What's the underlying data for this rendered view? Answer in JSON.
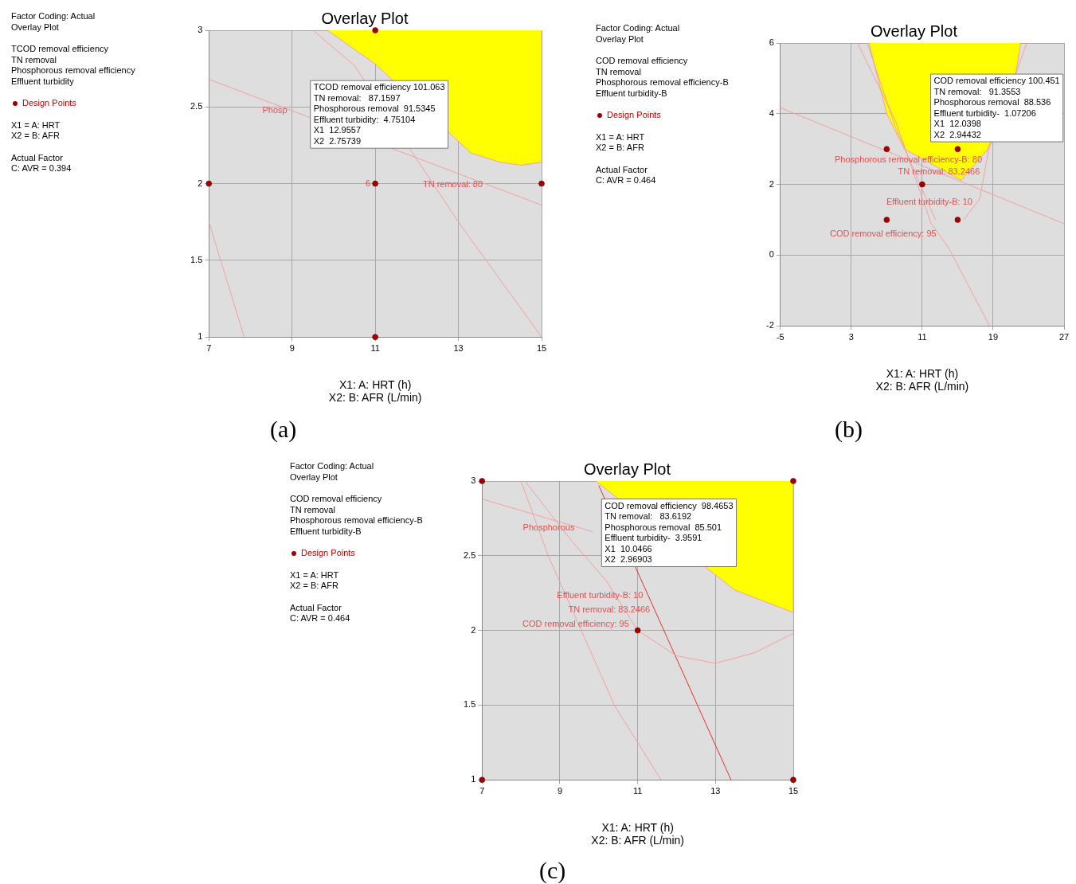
{
  "chart_data": [
    {
      "type": "scatter",
      "title": "Overlay Plot",
      "xlabel": "X1: A: HRT (h)\nX2: B: AFR (L/min)",
      "xlim": [
        7,
        15
      ],
      "xticks": [
        7,
        9,
        11,
        13,
        15
      ],
      "ylim": [
        1,
        3
      ],
      "yticks": [
        1,
        1.5,
        2,
        2.5,
        3
      ],
      "grid": true,
      "legend": "left",
      "annotations": [
        "Factor Coding: Actual\nOverlay Plot",
        "TCOD removal efficiency\nTN removal\nPhosphorous removal efficiency\nEffluent turbidity",
        "X1 = A: HRT\nX2 = B: AFR",
        "Actual Factor\nC: AVR = 0.394",
        "TCOD removal efficiency 101.063\nTN removal:   87.1597\nPhosphorous removal  91.5345\nEffluent turbidity:  4.75104\nX1  12.9557\nX2  2.75739",
        "(a)",
        {
          "text": "Phosp",
          "x": 9,
          "y": 2.475
        },
        {
          "text": "TN removal: 80",
          "x": 13.7,
          "y": 1.993
        },
        {
          "text": "6",
          "x": 11,
          "y": 2
        }
      ],
      "series": [
        {
          "type": "area",
          "color": "#ffff00",
          "x": [
            9.85,
            11,
            13.3,
            14,
            14.5,
            15,
            15
          ],
          "values": [
            3,
            2.78,
            2.2,
            2.14,
            2.12,
            2.14,
            3
          ]
        },
        {
          "type": "line",
          "color": "#f4a0a0",
          "x": [
            7,
            15
          ],
          "values": [
            2.68,
            1.86
          ]
        },
        {
          "type": "line",
          "color": "#f4a0a0",
          "x": [
            9.5,
            10.5,
            13,
            15
          ],
          "values": [
            3,
            2.77,
            1.75,
            1
          ]
        },
        {
          "type": "line",
          "color": "#f4a0a0",
          "x": [
            7,
            7.85
          ],
          "values": [
            1.75,
            1
          ]
        },
        {
          "type": "scatter",
          "name": "Design Points",
          "color": "#a00000",
          "marker": "circle",
          "x": [
            11,
            7,
            11,
            15,
            11
          ],
          "values": [
            3,
            2,
            2,
            2,
            1
          ]
        }
      ]
    },
    {
      "type": "scatter",
      "title": "Overlay Plot",
      "xlabel": "X1: A: HRT (h)\nX2: B: AFR (L/min)",
      "xlim": [
        -5,
        27
      ],
      "xticks": [
        -5,
        3,
        11,
        19,
        27
      ],
      "ylim": [
        -2,
        6
      ],
      "yticks": [
        -2,
        0,
        2,
        4,
        6
      ],
      "grid": true,
      "legend": "left",
      "annotations": [
        "Factor Coding: Actual\nOverlay Plot",
        "COD removal efficiency\nTN removal\nPhosphorous removal efficiency-B\nEffluent turbidity-B",
        "X1 = A: HRT\nX2 = B: AFR",
        "Actual Factor\nC: AVR = 0.464",
        "COD removal efficiency 100.451\nTN removal:   91.3553\nPhosphorous removal  88.536\nEffluent turbidity-  1.07206\nX1  12.0398\nX2  2.94432",
        "(b)",
        {
          "text": "Phosphorous removal efficiency-B: 80",
          "x": 18.29,
          "y": 2.7
        },
        {
          "text": "TN removal: 83.2466",
          "x": 18.04,
          "y": 2.35
        },
        {
          "text": "Effluent turbidity-B: 10",
          "x": 17.2,
          "y": 1.5
        },
        {
          "text": "COD removal efficiency: 95",
          "x": 13.14,
          "y": 0.6
        }
      ],
      "series": [
        {
          "type": "area",
          "color": "#ffff00",
          "x": [
            5,
            7,
            9,
            15.4,
            18.4,
            21.6,
            22.1
          ],
          "values": [
            6,
            4,
            3,
            2.12,
            3,
            5.2,
            6
          ]
        },
        {
          "type": "line",
          "color": "#f4a0a0",
          "x": [
            -5,
            27
          ],
          "values": [
            4.17,
            0.89
          ]
        },
        {
          "type": "line",
          "color": "#f4a0a0",
          "x": [
            3.7,
            8,
            12,
            14,
            18.6
          ],
          "values": [
            6,
            3.8,
            0.9,
            0.2,
            -2
          ]
        },
        {
          "type": "line",
          "color": "#f4a0a0",
          "x": [
            4.8,
            8,
            12.5
          ],
          "values": [
            6,
            3.6,
            1
          ]
        },
        {
          "type": "line",
          "color": "#f4a0a0",
          "x": [
            22.8,
            21.8,
            18.5,
            17.5,
            15.7
          ],
          "values": [
            6,
            5.3,
            3,
            1.6,
            1
          ]
        },
        {
          "type": "scatter",
          "name": "Design Points",
          "color": "#a00000",
          "marker": "circle",
          "x": [
            7,
            15,
            11,
            7,
            15
          ],
          "values": [
            3,
            3,
            2,
            1,
            1
          ]
        }
      ]
    },
    {
      "type": "scatter",
      "title": "Overlay Plot",
      "xlabel": "X1: A: HRT (h)\nX2: B: AFR (L/min)",
      "xlim": [
        7,
        15
      ],
      "xticks": [
        7,
        9,
        11,
        13,
        15
      ],
      "ylim": [
        1,
        3
      ],
      "yticks": [
        1,
        1.5,
        2,
        2.5,
        3
      ],
      "grid": true,
      "legend": "left",
      "annotations": [
        "Factor Coding: Actual\nOverlay Plot",
        "COD removal efficiency\nTN removal\nPhosphorous removal efficiency-B\nEffluent turbidity-B",
        "X1 = A: HRT\nX2 = B: AFR",
        "Actual Factor\nC: AVR = 0.464",
        "COD removal efficiency  98.4653\nTN removal:   83.6192\nPhosphorous removal  85.501\nEffluent turbidity-  3.9591\nX1  10.0466\nX2  2.96903",
        "(c)",
        {
          "text": "Phosphorous",
          "x": 9.5,
          "y": 2.687
        },
        {
          "text": "Effluent turbidity-B: 10",
          "x": 11.26,
          "y": 2.23
        },
        {
          "text": "TN removal: 83.2466",
          "x": 11.44,
          "y": 2.135
        },
        {
          "text": "COD removal efficiency: 95",
          "x": 10.9,
          "y": 2.04
        }
      ],
      "series": [
        {
          "type": "area",
          "color": "#ffff00",
          "x": [
            9.92,
            13.5,
            15,
            15
          ],
          "values": [
            3,
            2.27,
            2.12,
            3
          ]
        },
        {
          "type": "line",
          "color": "#f4a0a0",
          "x": [
            7,
            9.85
          ],
          "values": [
            2.88,
            2.66
          ]
        },
        {
          "type": "line",
          "color": "#e03030",
          "x": [
            10,
            13.4
          ],
          "values": [
            2.97,
            1
          ]
        },
        {
          "type": "line",
          "color": "#f4a0a0",
          "x": [
            8,
            8.7,
            10.4,
            11.6
          ],
          "values": [
            3,
            2.5,
            1.5,
            1
          ]
        },
        {
          "type": "line",
          "color": "#f4a0a0",
          "x": [
            8.1,
            9.3,
            10.2,
            11,
            12,
            13,
            14,
            15
          ],
          "values": [
            3,
            2.6,
            2.33,
            2,
            1.83,
            1.78,
            1.85,
            1.98
          ]
        },
        {
          "type": "scatter",
          "name": "Design Points",
          "color": "#a00000",
          "marker": "circle",
          "x": [
            7,
            15,
            11,
            7,
            15
          ],
          "values": [
            3,
            3,
            2,
            1,
            1
          ]
        }
      ]
    }
  ]
}
